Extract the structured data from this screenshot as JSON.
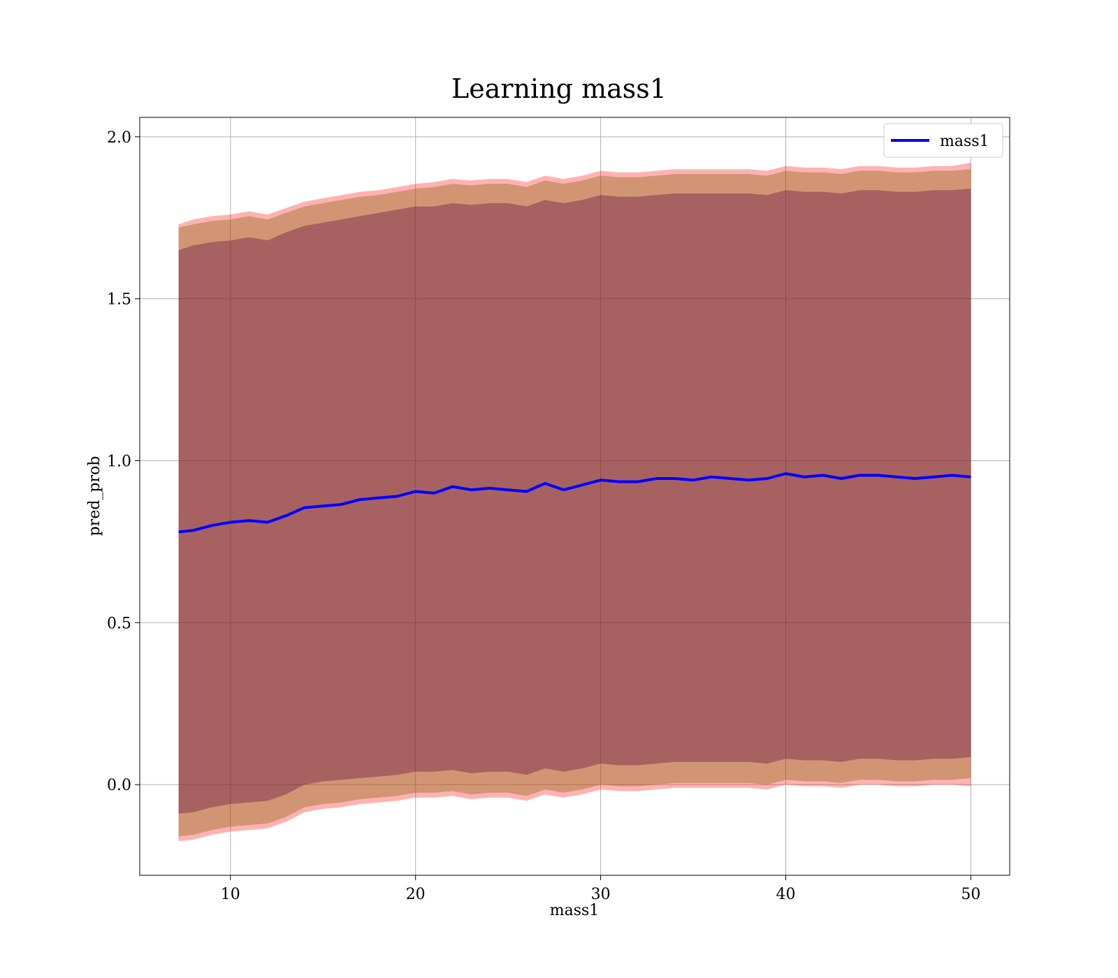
{
  "chart_data": {
    "type": "line",
    "title": "Learning mass1",
    "xlabel": "mass1",
    "ylabel": "pred_prob",
    "xlim": [
      5.1,
      52.1
    ],
    "ylim": [
      -0.28,
      2.06
    ],
    "xticks": [
      10,
      20,
      30,
      40,
      50
    ],
    "yticks": [
      0.0,
      0.5,
      1.0,
      1.5,
      2.0
    ],
    "xtick_labels": [
      "10",
      "20",
      "30",
      "40",
      50
    ],
    "ytick_labels": [
      "0.0",
      "0.5",
      "1.0",
      "1.5",
      "2.0"
    ],
    "grid": true,
    "legend": {
      "position": "top-right",
      "entries": [
        "mass1"
      ]
    },
    "colors": {
      "line": "#0000ff",
      "band_outer": "#ff0000",
      "band_mid": "#8b6914",
      "band_inner": "#5a0040"
    },
    "x": [
      7.2,
      8.0,
      9.0,
      10.0,
      11.0,
      12.0,
      13.0,
      14.0,
      15.0,
      16.0,
      17.0,
      18.0,
      19.0,
      20.0,
      21.0,
      22.0,
      23.0,
      24.0,
      25.0,
      26.0,
      27.0,
      28.0,
      29.0,
      30.0,
      31.0,
      32.0,
      33.0,
      34.0,
      35.0,
      36.0,
      37.0,
      38.0,
      39.0,
      40.0,
      41.0,
      42.0,
      43.0,
      44.0,
      45.0,
      46.0,
      47.0,
      48.0,
      49.0,
      50.0
    ],
    "series": [
      {
        "name": "mass1",
        "values": [
          0.78,
          0.785,
          0.8,
          0.81,
          0.815,
          0.81,
          0.83,
          0.855,
          0.86,
          0.865,
          0.88,
          0.885,
          0.89,
          0.905,
          0.9,
          0.92,
          0.91,
          0.915,
          0.91,
          0.905,
          0.93,
          0.91,
          0.925,
          0.94,
          0.935,
          0.935,
          0.945,
          0.945,
          0.94,
          0.95,
          0.945,
          0.94,
          0.945,
          0.96,
          0.95,
          0.955,
          0.945,
          0.955,
          0.955,
          0.95,
          0.945,
          0.95,
          0.955,
          0.95
        ],
        "band_outer_upper": [
          1.73,
          1.745,
          1.755,
          1.76,
          1.77,
          1.76,
          1.78,
          1.8,
          1.81,
          1.82,
          1.83,
          1.835,
          1.845,
          1.855,
          1.86,
          1.87,
          1.865,
          1.87,
          1.87,
          1.86,
          1.88,
          1.87,
          1.88,
          1.895,
          1.89,
          1.89,
          1.895,
          1.9,
          1.9,
          1.9,
          1.9,
          1.9,
          1.895,
          1.91,
          1.905,
          1.905,
          1.9,
          1.91,
          1.91,
          1.905,
          1.905,
          1.91,
          1.91,
          1.92
        ],
        "band_mid_upper": [
          1.72,
          1.73,
          1.74,
          1.745,
          1.755,
          1.745,
          1.765,
          1.785,
          1.795,
          1.805,
          1.815,
          1.82,
          1.83,
          1.84,
          1.845,
          1.855,
          1.85,
          1.855,
          1.855,
          1.845,
          1.865,
          1.855,
          1.865,
          1.88,
          1.875,
          1.875,
          1.88,
          1.885,
          1.885,
          1.885,
          1.885,
          1.885,
          1.88,
          1.895,
          1.89,
          1.89,
          1.885,
          1.895,
          1.895,
          1.89,
          1.89,
          1.895,
          1.895,
          1.9
        ],
        "band_inner_upper": [
          1.65,
          1.665,
          1.675,
          1.68,
          1.69,
          1.68,
          1.705,
          1.725,
          1.735,
          1.745,
          1.755,
          1.765,
          1.775,
          1.785,
          1.785,
          1.795,
          1.79,
          1.795,
          1.795,
          1.785,
          1.805,
          1.795,
          1.805,
          1.82,
          1.815,
          1.815,
          1.82,
          1.825,
          1.825,
          1.825,
          1.825,
          1.825,
          1.82,
          1.835,
          1.83,
          1.83,
          1.825,
          1.835,
          1.835,
          1.83,
          1.83,
          1.835,
          1.835,
          1.84
        ],
        "band_inner_lower": [
          -0.09,
          -0.085,
          -0.07,
          -0.06,
          -0.055,
          -0.05,
          -0.03,
          0.0,
          0.01,
          0.015,
          0.02,
          0.025,
          0.03,
          0.04,
          0.04,
          0.045,
          0.035,
          0.04,
          0.04,
          0.03,
          0.05,
          0.04,
          0.05,
          0.065,
          0.06,
          0.06,
          0.065,
          0.07,
          0.07,
          0.07,
          0.07,
          0.07,
          0.065,
          0.08,
          0.075,
          0.075,
          0.07,
          0.08,
          0.08,
          0.075,
          0.075,
          0.08,
          0.08,
          0.085
        ],
        "band_mid_lower": [
          -0.16,
          -0.155,
          -0.14,
          -0.13,
          -0.125,
          -0.12,
          -0.1,
          -0.07,
          -0.06,
          -0.055,
          -0.045,
          -0.04,
          -0.035,
          -0.025,
          -0.025,
          -0.02,
          -0.03,
          -0.025,
          -0.025,
          -0.035,
          -0.015,
          -0.025,
          -0.015,
          0.0,
          -0.005,
          -0.005,
          0.0,
          0.005,
          0.005,
          0.005,
          0.005,
          0.005,
          0.0,
          0.015,
          0.01,
          0.01,
          0.005,
          0.015,
          0.015,
          0.01,
          0.01,
          0.015,
          0.015,
          0.02
        ],
        "band_outer_lower": [
          -0.175,
          -0.17,
          -0.155,
          -0.145,
          -0.14,
          -0.135,
          -0.115,
          -0.085,
          -0.075,
          -0.07,
          -0.06,
          -0.055,
          -0.05,
          -0.04,
          -0.04,
          -0.035,
          -0.045,
          -0.04,
          -0.04,
          -0.05,
          -0.03,
          -0.04,
          -0.03,
          -0.015,
          -0.02,
          -0.02,
          -0.015,
          -0.01,
          -0.01,
          -0.01,
          -0.01,
          -0.01,
          -0.015,
          0.0,
          -0.005,
          -0.005,
          -0.01,
          0.0,
          0.0,
          -0.005,
          -0.005,
          0.0,
          0.0,
          -0.005
        ]
      }
    ]
  }
}
